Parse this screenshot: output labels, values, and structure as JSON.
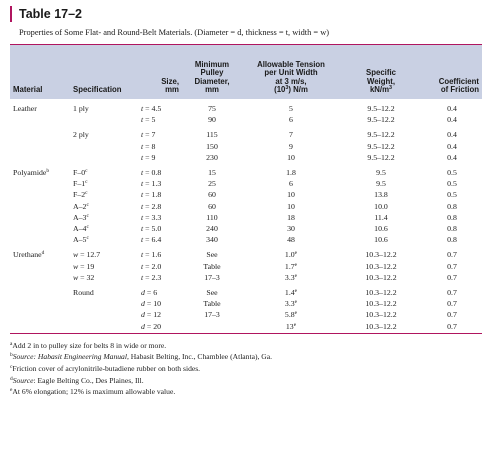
{
  "title": "Table 17–2",
  "caption": "Properties of Some Flat- and Round-Belt Materials. (Diameter = d, thickness = t, width = w)",
  "headers": {
    "material": "Material",
    "specification": "Specification",
    "size": "Size,\nmm",
    "min_pulley": "Minimum\nPulley\nDiameter,\nmm",
    "tension_l1": "Allowable Tension\nper Unit Width\nat 3 m/s,",
    "tension_l2": "(10",
    "tension_exp": "3",
    "tension_l3": ") N/m",
    "weight_l1": "Specific\nWeight,\nkN/m",
    "weight_exp": "3",
    "friction": "Coefficient\nof Friction"
  },
  "rows": [
    {
      "material": "Leather",
      "spec": "1 ply",
      "size_var": "t",
      "size_val": " = 4.5",
      "pulley": "75",
      "tension": "5",
      "tsup": "",
      "weight": "9.5–12.2",
      "friction": "0.4",
      "group": true
    },
    {
      "material": "",
      "spec": "",
      "size_var": "t",
      "size_val": " = 5",
      "pulley": "90",
      "tension": "6",
      "tsup": "",
      "weight": "9.5–12.2",
      "friction": "0.4",
      "group": false
    },
    {
      "material": "",
      "spec": "2 ply",
      "size_var": "t",
      "size_val": " = 7",
      "pulley": "115",
      "tension": "7",
      "tsup": "",
      "weight": "9.5–12.2",
      "friction": "0.4",
      "group": true
    },
    {
      "material": "",
      "spec": "",
      "size_var": "t",
      "size_val": " = 8",
      "pulley": "150",
      "tension": "9",
      "tsup": "",
      "weight": "9.5–12.2",
      "friction": "0.4",
      "group": false
    },
    {
      "material": "",
      "spec": "",
      "size_var": "t",
      "size_val": " = 9",
      "pulley": "230",
      "tension": "10",
      "tsup": "",
      "weight": "9.5–12.2",
      "friction": "0.4",
      "group": false
    },
    {
      "material": "Polyamide",
      "msup": "b",
      "spec": "F–0",
      "ssup": "c",
      "size_var": "t",
      "size_val": " = 0.8",
      "pulley": "15",
      "tension": "1.8",
      "tsup": "",
      "weight": "9.5",
      "friction": "0.5",
      "group": true
    },
    {
      "material": "",
      "spec": "F–1",
      "ssup": "c",
      "size_var": "t",
      "size_val": " = 1.3",
      "pulley": "25",
      "tension": "6",
      "tsup": "",
      "weight": "9.5",
      "friction": "0.5",
      "group": false
    },
    {
      "material": "",
      "spec": "F–2",
      "ssup": "c",
      "size_var": "t",
      "size_val": " = 1.8",
      "pulley": "60",
      "tension": "10",
      "tsup": "",
      "weight": "13.8",
      "friction": "0.5",
      "group": false
    },
    {
      "material": "",
      "spec": "A–2",
      "ssup": "c",
      "size_var": "t",
      "size_val": " = 2.8",
      "pulley": "60",
      "tension": "10",
      "tsup": "",
      "weight": "10.0",
      "friction": "0.8",
      "group": false
    },
    {
      "material": "",
      "spec": "A–3",
      "ssup": "c",
      "size_var": "t",
      "size_val": " = 3.3",
      "pulley": "110",
      "tension": "18",
      "tsup": "",
      "weight": "11.4",
      "friction": "0.8",
      "group": false
    },
    {
      "material": "",
      "spec": "A–4",
      "ssup": "c",
      "size_var": "t",
      "size_val": " = 5.0",
      "pulley": "240",
      "tension": "30",
      "tsup": "",
      "weight": "10.6",
      "friction": "0.8",
      "group": false
    },
    {
      "material": "",
      "spec": "A–5",
      "ssup": "c",
      "size_var": "t",
      "size_val": " = 6.4",
      "pulley": "340",
      "tension": "48",
      "tsup": "",
      "weight": "10.6",
      "friction": "0.8",
      "group": false
    },
    {
      "material": "Urethane",
      "msup": "d",
      "spec_var": "w",
      "spec": " = 12.7",
      "size_var": "t",
      "size_val": " = 1.6",
      "pulley": "See",
      "tension": "1.0",
      "tsup": "e",
      "weight": "10.3–12.2",
      "friction": "0.7",
      "group": true
    },
    {
      "material": "",
      "spec_var": "w",
      "spec": " = 19",
      "size_var": "t",
      "size_val": " = 2.0",
      "pulley": "Table",
      "tension": "1.7",
      "tsup": "e",
      "weight": "10.3–12.2",
      "friction": "0.7",
      "group": false
    },
    {
      "material": "",
      "spec_var": "w",
      "spec": " = 32",
      "size_var": "t",
      "size_val": " = 2.3",
      "pulley": "17–3",
      "tension": "3.3",
      "tsup": "e",
      "weight": "10.3–12.2",
      "friction": "0.7",
      "group": false
    },
    {
      "material": "",
      "spec": "Round",
      "size_var": "d",
      "size_val": " = 6",
      "pulley": "See",
      "tension": "1.4",
      "tsup": "e",
      "weight": "10.3–12.2",
      "friction": "0.7",
      "group": true
    },
    {
      "material": "",
      "spec": "",
      "size_var": "d",
      "size_val": " = 10",
      "pulley": "Table",
      "tension": "3.3",
      "tsup": "e",
      "weight": "10.3–12.2",
      "friction": "0.7",
      "group": false
    },
    {
      "material": "",
      "spec": "",
      "size_var": "d",
      "size_val": " = 12",
      "pulley": "17–3",
      "tension": "5.8",
      "tsup": "e",
      "weight": "10.3–12.2",
      "friction": "0.7",
      "group": false
    },
    {
      "material": "",
      "spec": "",
      "size_var": "d",
      "size_val": " = 20",
      "pulley": "",
      "tension": "13",
      "tsup": "e",
      "weight": "10.3–12.2",
      "friction": "0.7",
      "group": false
    }
  ],
  "notes": [
    {
      "sup": "a",
      "prefix": "",
      "italic": "",
      "text": "Add 2 in to pulley size for belts 8 in wide or more."
    },
    {
      "sup": "b",
      "prefix": "",
      "italic": "Source: Habasit Engineering Manual",
      "text": ", Habasit Belting, Inc., Chamblee (Atlanta), Ga."
    },
    {
      "sup": "c",
      "prefix": "",
      "italic": "",
      "text": "Friction cover of acrylonitrile-butadiene rubber on both sides."
    },
    {
      "sup": "d",
      "prefix": "",
      "italic": "Source",
      "text": ": Eagle Belting Co., Des Plaines, Ill."
    },
    {
      "sup": "e",
      "prefix": "",
      "italic": "",
      "text": "At 6% elongation; 12% is maximum allowable value."
    }
  ],
  "colors": {
    "accent": "#b0155f",
    "header_bg": "#c9d0e3"
  }
}
